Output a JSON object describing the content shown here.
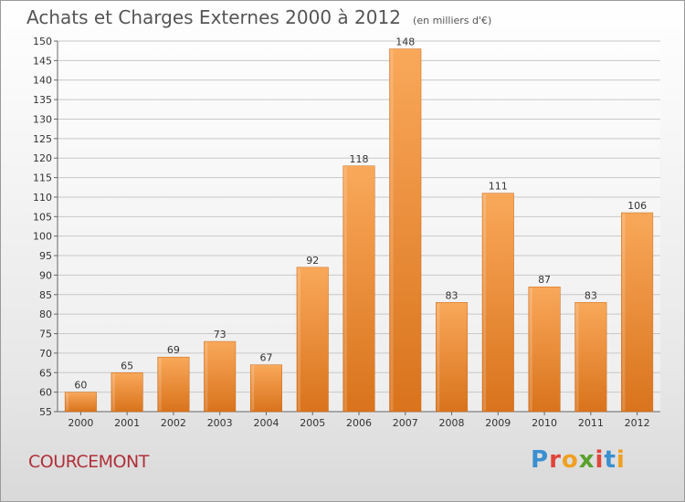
{
  "header": {
    "title": "Achats et Charges Externes 2000 à 2012",
    "subtitle": "(en milliers d'€)"
  },
  "footer": {
    "commune": "COURCEMONT",
    "logo_text": "Proxiti",
    "logo_colors": [
      "#3a8fd0",
      "#e0443a",
      "#f0a020",
      "#5aa02c",
      "#e0443a",
      "#3a8fd0",
      "#f0a020"
    ]
  },
  "chart_data": {
    "type": "bar",
    "title": "Achats et Charges Externes 2000 à 2012",
    "subtitle": "(en milliers d'€)",
    "categories": [
      "2000",
      "2001",
      "2002",
      "2003",
      "2004",
      "2005",
      "2006",
      "2007",
      "2008",
      "2009",
      "2010",
      "2011",
      "2012"
    ],
    "values": [
      60,
      65,
      69,
      73,
      67,
      92,
      118,
      148,
      83,
      111,
      87,
      83,
      106
    ],
    "ylim": [
      55,
      150
    ],
    "yticks": [
      55,
      60,
      65,
      70,
      75,
      80,
      85,
      90,
      95,
      100,
      105,
      110,
      115,
      120,
      125,
      130,
      135,
      140,
      145,
      150
    ],
    "grid": true,
    "bar_color": "#f0913a",
    "bar_color_light": "#f9a85a",
    "bar_color_dark": "#d9731c"
  }
}
